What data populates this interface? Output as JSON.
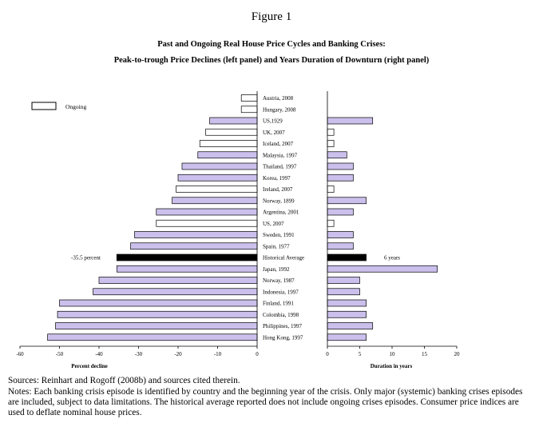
{
  "figure_label": "Figure 1",
  "title": "Past and Ongoing Real House Price Cycles and Banking Crises:",
  "subtitle": "Peak-to-trough Price Declines (left panel) and Years Duration of Downturn (right panel)",
  "legend_label": "Ongoing",
  "sources": "Sources: Reinhart and Rogoff (2008b) and sources cited therein.",
  "notes": "Notes: Each banking crisis episode is identified by country and the beginning year of the crisis.  Only major (systemic) banking crises episodes are included, subject to data limitations.  The historical average reported does not include ongoing crises episodes.  Consumer price indices are used to deflate nominal house prices.",
  "colors": {
    "past": "#cbc0ec",
    "ongoing": "#ffffff",
    "average": "#000000",
    "outline": "#000000"
  },
  "chart_data": [
    {
      "type": "bar",
      "orientation": "horizontal",
      "xlabel": "Percent decline",
      "xlim": [
        -60,
        0
      ],
      "xticks": [
        -60,
        -50,
        -40,
        -30,
        -20,
        -10,
        0
      ],
      "categories": [
        "Austria, 2008",
        "Hungary, 2008",
        "US,1929",
        "UK, 2007",
        "Iceland, 2007",
        "Malaysia, 1997",
        "Thailand, 1997",
        "Korea, 1997",
        "Ireland, 2007",
        "Norway, 1899",
        "Argentina, 2001",
        "US, 2007",
        "Sweden, 1991",
        "Spain, 1977",
        "Historical Average",
        "Japan, 1992",
        "Norway, 1987",
        "Indonesia, 1997",
        "Finland, 1991",
        "Colombia, 1998",
        "Philippines, 1997",
        "Hong Kong, 1997"
      ],
      "values": [
        -4,
        -4,
        -12,
        -13,
        -14.5,
        -15,
        -19,
        -20,
        -20.5,
        -21.5,
        -25.5,
        -25.5,
        -31,
        -32,
        -35.5,
        -35.5,
        -40,
        -41.5,
        -50,
        -50.5,
        -51,
        -53
      ],
      "status": [
        "ongoing",
        "ongoing",
        "past",
        "ongoing",
        "ongoing",
        "past",
        "past",
        "past",
        "ongoing",
        "past",
        "past",
        "ongoing",
        "past",
        "past",
        "average",
        "past",
        "past",
        "past",
        "past",
        "past",
        "past",
        "past"
      ],
      "annotations": [
        {
          "category": "Historical Average",
          "text": "-35.5 percent"
        }
      ]
    },
    {
      "type": "bar",
      "orientation": "horizontal",
      "xlabel": "Duration in years",
      "xlim": [
        0,
        20
      ],
      "xticks": [
        0,
        5,
        10,
        15,
        20
      ],
      "categories": [
        "Austria, 2008",
        "Hungary, 2008",
        "US,1929",
        "UK, 2007",
        "Iceland, 2007",
        "Malaysia, 1997",
        "Thailand, 1997",
        "Korea, 1997",
        "Ireland, 2007",
        "Norway, 1899",
        "Argentina, 2001",
        "US, 2007",
        "Sweden, 1991",
        "Spain, 1977",
        "Historical Average",
        "Japan, 1992",
        "Norway, 1987",
        "Indonesia, 1997",
        "Finland, 1991",
        "Colombia, 1998",
        "Philippines, 1997",
        "Hong Kong, 1997"
      ],
      "values": [
        0,
        0,
        7,
        1,
        1,
        3,
        4,
        4,
        1,
        6,
        4,
        1,
        4,
        4,
        6,
        17,
        5,
        5,
        6,
        6,
        7,
        6
      ],
      "status": [
        "ongoing",
        "ongoing",
        "past",
        "ongoing",
        "ongoing",
        "past",
        "past",
        "past",
        "ongoing",
        "past",
        "past",
        "ongoing",
        "past",
        "past",
        "average",
        "past",
        "past",
        "past",
        "past",
        "past",
        "past",
        "past"
      ],
      "annotations": [
        {
          "category": "Historical Average",
          "text": "6 years"
        }
      ]
    }
  ]
}
